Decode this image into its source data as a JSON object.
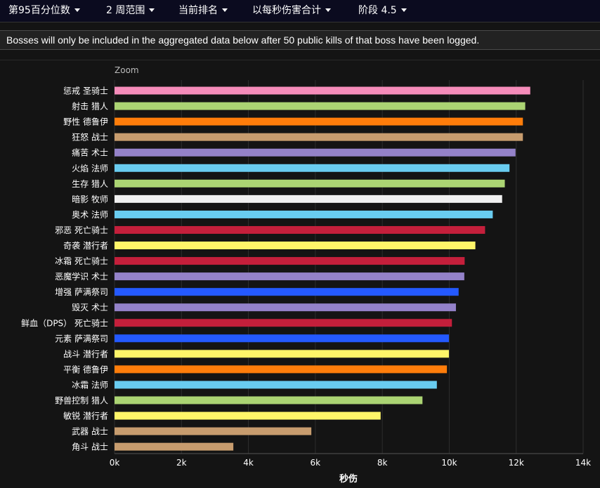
{
  "filters": [
    {
      "label": "第95百分位数"
    },
    {
      "label": "2 周范围"
    },
    {
      "label": "当前排名"
    },
    {
      "label": "以每秒伤害合计"
    },
    {
      "label": "阶段 4.5"
    }
  ],
  "notice": "Bosses will only be included in the aggregated data below after 50 public kills of that boss have been logged.",
  "zoom_label": "Zoom",
  "chart_data": {
    "type": "bar",
    "orientation": "horizontal",
    "title": "",
    "xlabel": "秒伤",
    "ylabel": "",
    "xlim": [
      0,
      14000
    ],
    "x_ticks": [
      0,
      2000,
      4000,
      6000,
      8000,
      10000,
      12000,
      14000
    ],
    "x_tick_labels": [
      "0k",
      "2k",
      "4k",
      "6k",
      "8k",
      "10k",
      "12k",
      "14k"
    ],
    "grid": true,
    "categories": [
      "惩戒 圣骑士",
      "射击 猎人",
      "野性 德鲁伊",
      "狂怒 战士",
      "痛苦 术士",
      "火焰 法师",
      "生存 猎人",
      "暗影 牧师",
      "奥术 法师",
      "邪恶 死亡骑士",
      "奇袭 潜行者",
      "冰霜 死亡骑士",
      "恶魔学识 术士",
      "增强 萨满祭司",
      "毁灭 术士",
      "鲜血（DPS） 死亡骑士",
      "元素 萨满祭司",
      "战斗 潜行者",
      "平衡 德鲁伊",
      "冰霜 法师",
      "野兽控制 猎人",
      "敏锐 潜行者",
      "武器 战士",
      "角斗 战士"
    ],
    "values": [
      12420,
      12270,
      12200,
      12200,
      11980,
      11800,
      11660,
      11580,
      11300,
      11070,
      10780,
      10460,
      10450,
      10280,
      10200,
      10080,
      9990,
      9990,
      9930,
      9630,
      9200,
      7950,
      5880,
      3550
    ],
    "colors": [
      "#f58cba",
      "#abd473",
      "#ff7d0a",
      "#c79c6e",
      "#9482c9",
      "#69ccf0",
      "#abd473",
      "#f0f0f0",
      "#69ccf0",
      "#c41f3b",
      "#fff569",
      "#c41f3b",
      "#9482c9",
      "#2459ff",
      "#9482c9",
      "#c41f3b",
      "#2459ff",
      "#fff569",
      "#ff7d0a",
      "#69ccf0",
      "#abd473",
      "#fff569",
      "#c79c6e",
      "#c79c6e"
    ]
  }
}
